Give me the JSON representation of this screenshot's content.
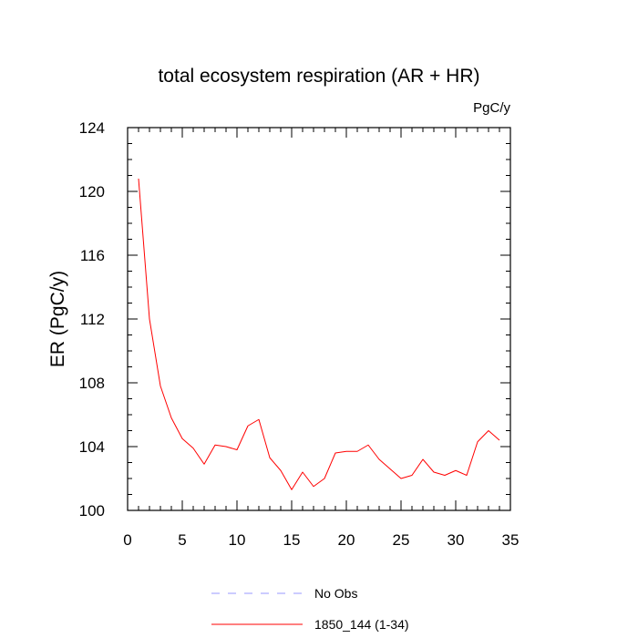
{
  "chart_data": {
    "type": "line",
    "title": "total ecosystem respiration (AR + HR)",
    "units": "PgC/y",
    "xlabel": "",
    "ylabel": "ER  (PgC/y)",
    "xlim": [
      0,
      35
    ],
    "ylim": [
      100,
      124
    ],
    "x_ticks": [
      0,
      5,
      10,
      15,
      20,
      25,
      30,
      35
    ],
    "y_ticks": [
      100,
      104,
      108,
      112,
      116,
      120,
      124
    ],
    "grid": false,
    "legend_position": "bottom",
    "legend": [
      {
        "label": "No Obs",
        "color": "#9999ff",
        "dash": "dashed"
      },
      {
        "label": "1850_144 (1-34)",
        "color": "#ff0000",
        "dash": "solid"
      }
    ],
    "series": [
      {
        "name": "1850_144 (1-34)",
        "color": "#ff0000",
        "x": [
          1,
          2,
          3,
          4,
          5,
          6,
          7,
          8,
          9,
          10,
          11,
          12,
          13,
          14,
          15,
          16,
          17,
          18,
          19,
          20,
          21,
          22,
          23,
          24,
          25,
          26,
          27,
          28,
          29,
          30,
          31,
          32,
          33,
          34
        ],
        "values": [
          120.8,
          112.0,
          107.8,
          105.8,
          104.5,
          103.9,
          102.9,
          104.1,
          104.0,
          103.8,
          105.3,
          105.7,
          103.3,
          102.5,
          101.3,
          102.4,
          101.5,
          102.0,
          103.6,
          103.7,
          103.7,
          104.1,
          103.2,
          102.6,
          102.0,
          102.2,
          103.2,
          102.4,
          102.2,
          102.5,
          102.2,
          104.3,
          105.0,
          104.4
        ]
      }
    ]
  }
}
